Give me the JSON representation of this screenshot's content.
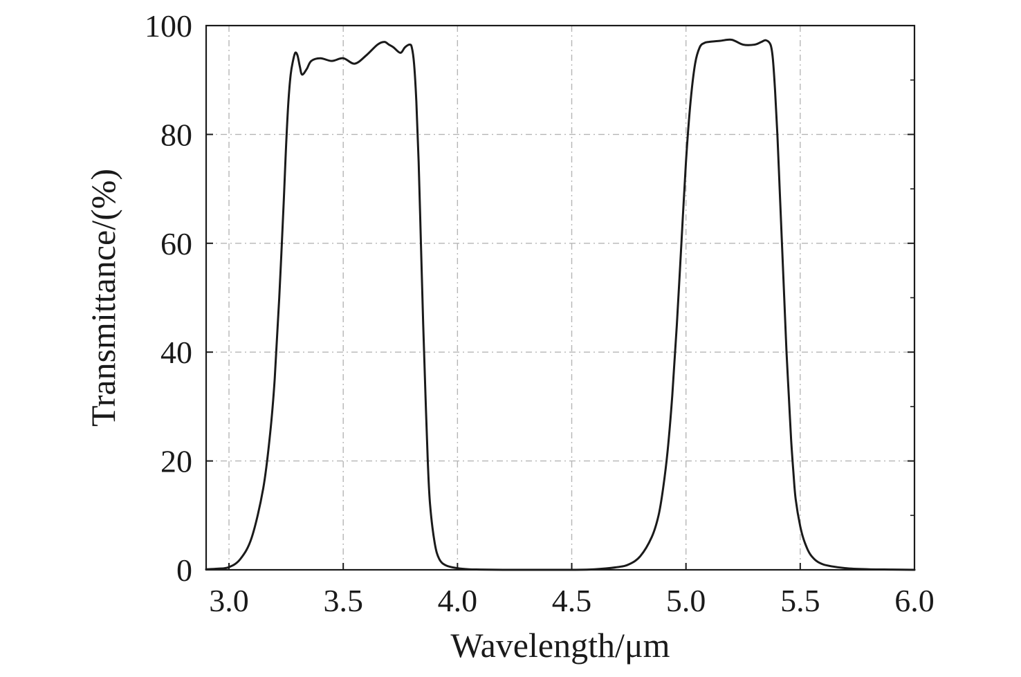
{
  "chart_data": {
    "type": "line",
    "title": "",
    "xlabel": "Wavelength/μm",
    "ylabel": "Transmittance/(%)",
    "xlim": [
      2.9,
      6.0
    ],
    "ylim": [
      0,
      100
    ],
    "x_ticks": [
      "3.0",
      "3.5",
      "4.0",
      "4.5",
      "5.0",
      "5.5",
      "6.0"
    ],
    "y_ticks": [
      "0",
      "20",
      "40",
      "60",
      "80",
      "100"
    ],
    "grid": true,
    "legend": "none",
    "line_color": "#1a1a1a",
    "series": [
      {
        "x": [
          2.9,
          2.95,
          3.0,
          3.05,
          3.1,
          3.15,
          3.18,
          3.2,
          3.22,
          3.24,
          3.25,
          3.26,
          3.27,
          3.28,
          3.29,
          3.3,
          3.31,
          3.32,
          3.34,
          3.36,
          3.4,
          3.45,
          3.5,
          3.55,
          3.6,
          3.65,
          3.68,
          3.7,
          3.72,
          3.75,
          3.77,
          3.79,
          3.8,
          3.81,
          3.82,
          3.83,
          3.84,
          3.85,
          3.86,
          3.87,
          3.88,
          3.9,
          3.92,
          3.95,
          4.0,
          4.05,
          4.1,
          4.2,
          4.3,
          4.4,
          4.5,
          4.6,
          4.7,
          4.75,
          4.8,
          4.85,
          4.88,
          4.9,
          4.92,
          4.94,
          4.96,
          4.98,
          5.0,
          5.02,
          5.04,
          5.06,
          5.08,
          5.1,
          5.15,
          5.2,
          5.25,
          5.3,
          5.33,
          5.35,
          5.37,
          5.38,
          5.39,
          5.4,
          5.41,
          5.42,
          5.43,
          5.44,
          5.45,
          5.46,
          5.47,
          5.48,
          5.5,
          5.52,
          5.55,
          5.6,
          5.7,
          5.8,
          5.9,
          6.0
        ],
        "values": [
          0.1,
          0.2,
          0.5,
          2.0,
          6.0,
          15.0,
          25.0,
          35.0,
          50.0,
          68.0,
          78.0,
          86.0,
          91.0,
          93.5,
          95.0,
          94.5,
          92.5,
          91.0,
          92.0,
          93.5,
          94.0,
          93.5,
          94.0,
          93.0,
          94.5,
          96.5,
          97.0,
          96.5,
          96.0,
          95.0,
          96.0,
          96.5,
          96.0,
          93.0,
          86.0,
          75.0,
          60.0,
          45.0,
          32.0,
          20.0,
          12.0,
          5.0,
          2.0,
          0.8,
          0.3,
          0.1,
          0.05,
          0.0,
          0.0,
          0.0,
          0.0,
          0.1,
          0.5,
          1.0,
          2.5,
          6.0,
          10.0,
          15.0,
          22.0,
          32.0,
          45.0,
          60.0,
          75.0,
          86.0,
          93.0,
          96.0,
          96.8,
          97.0,
          97.2,
          97.4,
          96.5,
          96.5,
          97.0,
          97.3,
          96.5,
          94.0,
          88.0,
          80.0,
          70.0,
          60.0,
          50.0,
          40.0,
          32.0,
          24.0,
          18.0,
          13.0,
          8.0,
          5.0,
          2.5,
          1.0,
          0.3,
          0.1,
          0.05,
          0.0
        ]
      }
    ]
  }
}
